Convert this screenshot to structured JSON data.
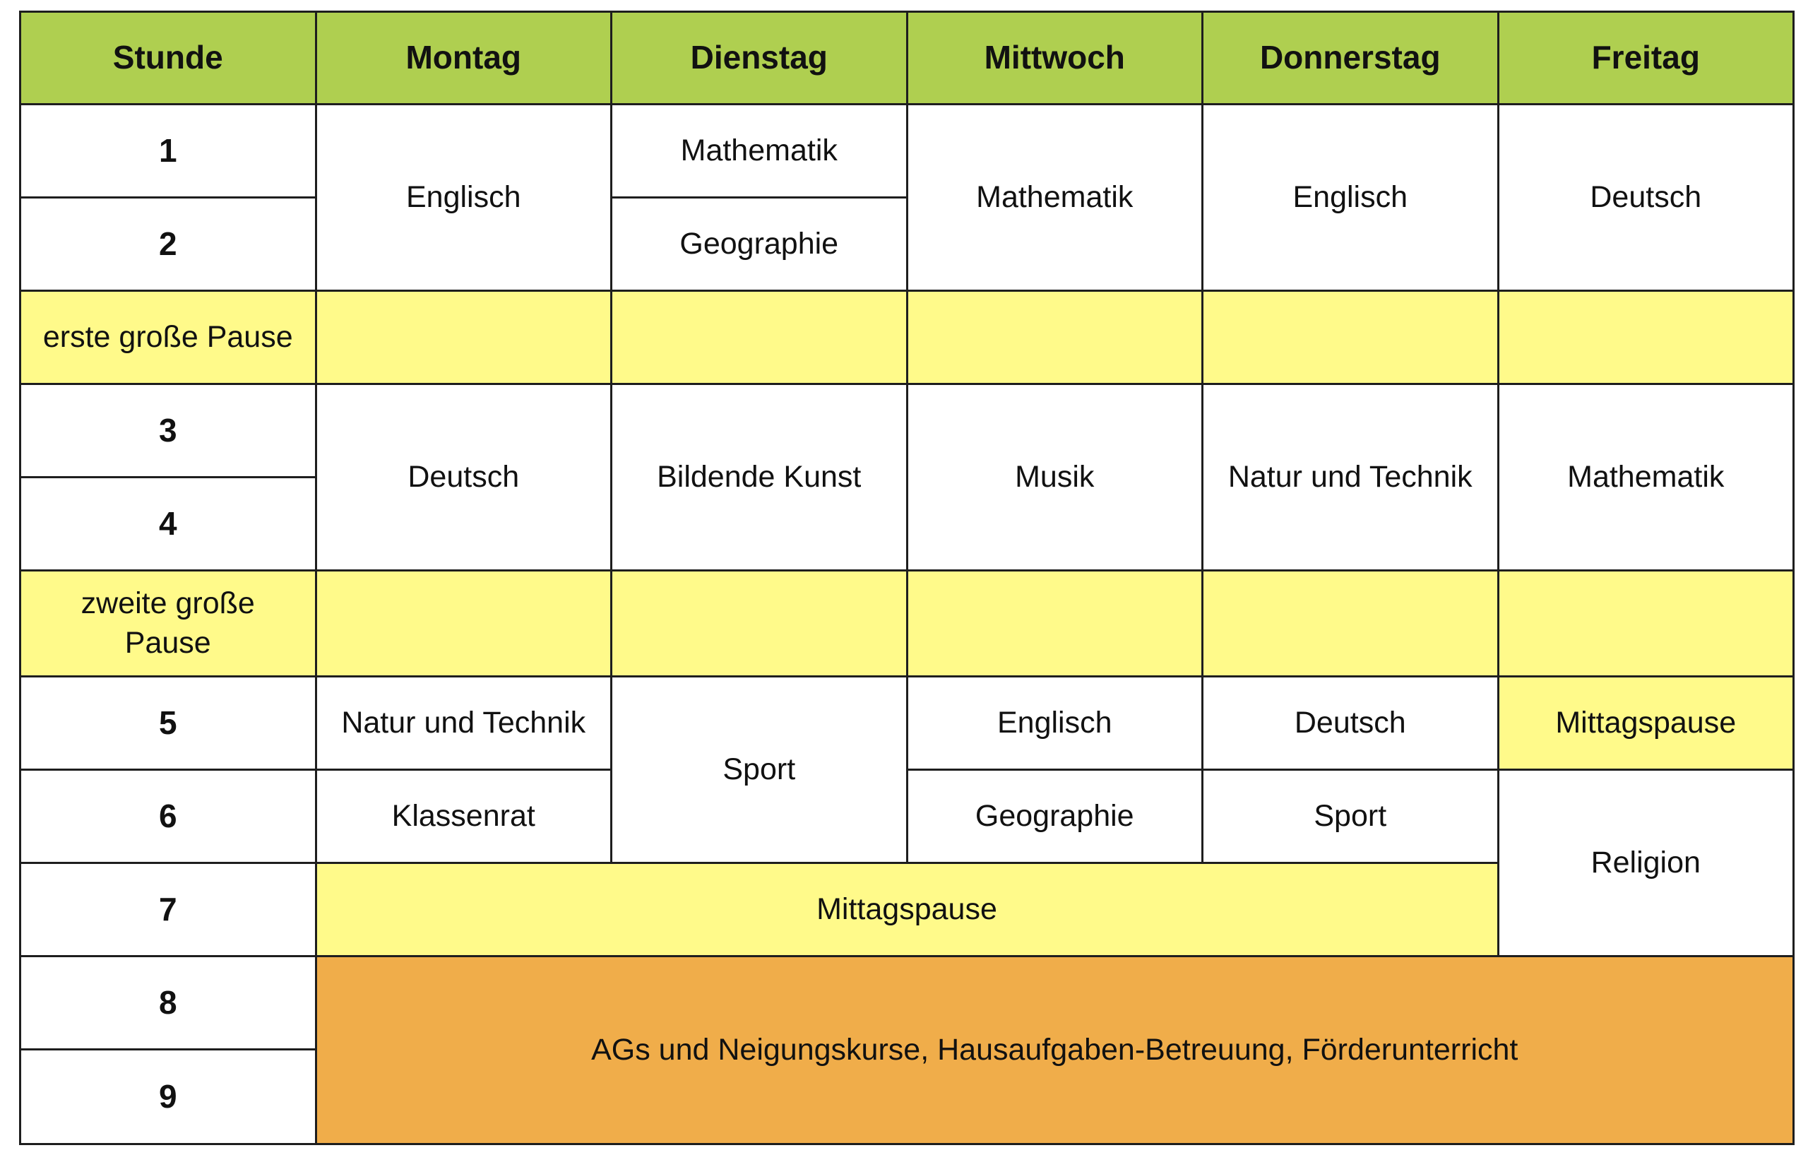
{
  "header": [
    "Stunde",
    "Montag",
    "Dienstag",
    "Mittwoch",
    "Donnerstag",
    "Freitag"
  ],
  "periods": [
    "1",
    "2",
    "3",
    "4",
    "5",
    "6",
    "7",
    "8",
    "9"
  ],
  "breaks": {
    "first": "erste große Pause",
    "second_line1": "zweite große",
    "second_line2": "Pause"
  },
  "montag": {
    "p12": "Englisch",
    "p34": "Deutsch",
    "p5": "Natur und Technik",
    "p6": "Klassenrat"
  },
  "dienstag": {
    "p1": "Mathematik",
    "p2": "Geographie",
    "p34": "Bildende Kunst",
    "p56": "Sport"
  },
  "mittwoch": {
    "p12": "Mathematik",
    "p34": "Musik",
    "p5": "Englisch",
    "p6": "Geographie"
  },
  "donnerstag": {
    "p12": "Englisch",
    "p34": "Natur und Technik",
    "p5": "Deutsch",
    "p6": "Sport"
  },
  "freitag": {
    "p12": "Deutsch",
    "p34": "Mathematik",
    "p5": "Mittagspause",
    "p67": "Religion"
  },
  "lunch": "Mittagspause",
  "afternoon": "AGs und Neigungskurse, Hausaufgaben-Betreuung, Förderunterricht",
  "colors": {
    "header": "#afcf50",
    "break": "#fffa8a",
    "afternoon": "#f0ad4a",
    "border": "#1e1e1e"
  }
}
